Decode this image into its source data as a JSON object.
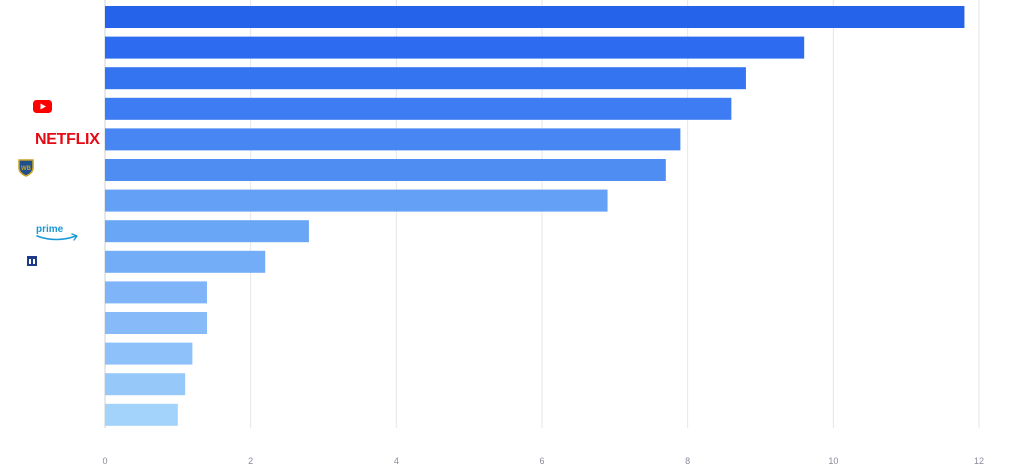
{
  "chart_data": {
    "type": "bar",
    "orientation": "horizontal",
    "categories": [
      {
        "logo": "",
        "value": 11.8,
        "color": "#2563eb"
      },
      {
        "logo": "",
        "value": 9.6,
        "color": "#2d6cf0"
      },
      {
        "logo": "",
        "value": 8.8,
        "color": "#3574f1"
      },
      {
        "logo": "youtube-logo",
        "value": 8.6,
        "color": "#3d7cf2"
      },
      {
        "logo": "netflix-logo",
        "value": 7.9,
        "color": "#4786f3"
      },
      {
        "logo": "warner-bros-logo",
        "value": 7.7,
        "color": "#4f8df3"
      },
      {
        "logo": "",
        "value": 6.9,
        "color": "#64a0f6"
      },
      {
        "logo": "prime-video-logo",
        "value": 2.8,
        "color": "#6aa6f6"
      },
      {
        "logo": "small-blue-logo",
        "value": 2.2,
        "color": "#74adf7"
      },
      {
        "logo": "",
        "value": 1.4,
        "color": "#7fb5f8"
      },
      {
        "logo": "",
        "value": 1.4,
        "color": "#86baf8"
      },
      {
        "logo": "",
        "value": 1.2,
        "color": "#8ec1f9"
      },
      {
        "logo": "",
        "value": 1.1,
        "color": "#97c8fa"
      },
      {
        "logo": "",
        "value": 1.0,
        "color": "#a3d3fa"
      }
    ],
    "xlim": [
      0,
      12
    ],
    "x_ticks": [
      "0",
      "2",
      "4",
      "6",
      "8",
      "10",
      "12"
    ],
    "grid": true,
    "title": "",
    "xlabel": "",
    "ylabel": ""
  },
  "logos": {
    "netflix_text": "NETFLIX",
    "prime_text": "prime"
  }
}
